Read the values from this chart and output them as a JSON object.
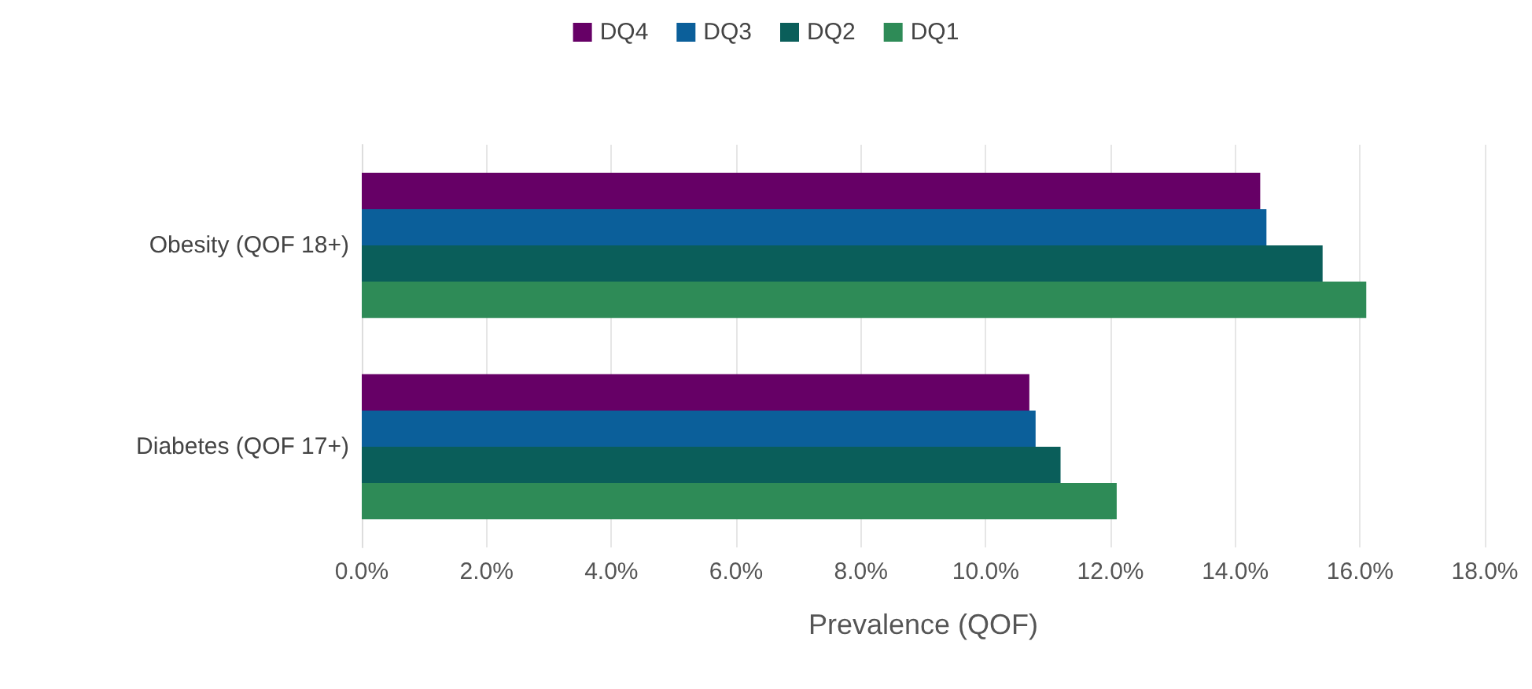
{
  "chart_data": {
    "type": "bar",
    "orientation": "horizontal",
    "categories": [
      "Obesity (QOF 18+)",
      "Diabetes (QOF 17+)"
    ],
    "series": [
      {
        "name": "DQ4",
        "color": "#660066",
        "values": [
          14.4,
          10.7
        ]
      },
      {
        "name": "DQ3",
        "color": "#0b5f9a",
        "values": [
          14.5,
          10.8
        ]
      },
      {
        "name": "DQ2",
        "color": "#0a5e5a",
        "values": [
          15.4,
          11.2
        ]
      },
      {
        "name": "DQ1",
        "color": "#2e8b57",
        "values": [
          16.1,
          12.1
        ]
      }
    ],
    "xlabel": "Prevalence (QOF)",
    "xlim": [
      0,
      18
    ],
    "xticks": [
      {
        "value": 0,
        "label": "0.0%"
      },
      {
        "value": 2,
        "label": "2.0%"
      },
      {
        "value": 4,
        "label": "4.0%"
      },
      {
        "value": 6,
        "label": "6.0%"
      },
      {
        "value": 8,
        "label": "8.0%"
      },
      {
        "value": 10,
        "label": "10.0%"
      },
      {
        "value": 12,
        "label": "12.0%"
      },
      {
        "value": 14,
        "label": "14.0%"
      },
      {
        "value": 16,
        "label": "16.0%"
      },
      {
        "value": 18,
        "label": "18.0%"
      }
    ],
    "grid": "x",
    "legend": "top"
  }
}
